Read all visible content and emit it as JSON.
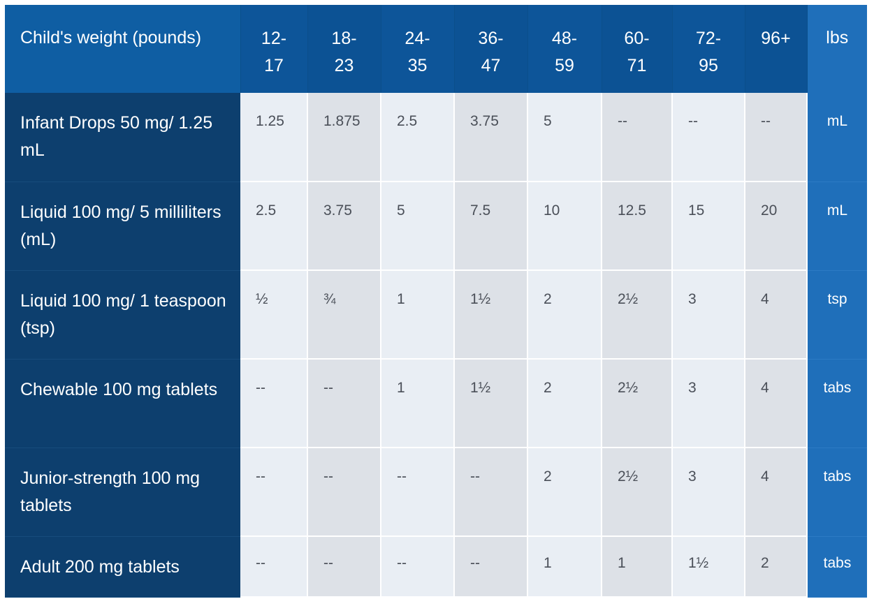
{
  "header": {
    "label": "Child's weight (pounds)",
    "weights": [
      "12-\n17",
      "18-\n23",
      "24-\n35",
      "36-\n47",
      "48-\n59",
      "60-\n71",
      "72-\n95",
      "96+"
    ],
    "unit": "lbs"
  },
  "rows": [
    {
      "label": "Infant Drops 50 mg/ 1.25 mL",
      "values": [
        "1.25",
        "1.875",
        "2.5",
        "3.75",
        "5",
        "--",
        "--",
        "--"
      ],
      "unit": "mL"
    },
    {
      "label": "Liquid 100 mg/ 5 milliliters (mL)",
      "values": [
        "2.5",
        "3.75",
        "5",
        "7.5",
        "10",
        "12.5",
        "15",
        "20"
      ],
      "unit": "mL"
    },
    {
      "label": "Liquid 100 mg/ 1 teaspoon (tsp)",
      "values": [
        "½",
        "¾",
        "1",
        "1½",
        "2",
        "2½",
        "3",
        "4"
      ],
      "unit": "tsp"
    },
    {
      "label": "Chewable 100 mg tablets",
      "values": [
        "--",
        "--",
        "1",
        "1½",
        "2",
        "2½",
        "3",
        "4"
      ],
      "unit": "tabs"
    },
    {
      "label": "Junior-strength 100 mg tablets",
      "values": [
        "--",
        "--",
        "--",
        "--",
        "2",
        "2½",
        "3",
        "4"
      ],
      "unit": "tabs"
    },
    {
      "label": "Adult 200 mg tablets",
      "values": [
        "--",
        "--",
        "--",
        "--",
        "1",
        "1",
        "1½",
        "2"
      ],
      "unit": "tabs"
    }
  ],
  "colors": {
    "header_bg": "#0e5a9e",
    "row_label_bg": "#0d3f6e",
    "unit_column_bg": "#1f6fba",
    "cell_light": "#e9eef4",
    "cell_shaded": "#dde1e7"
  }
}
